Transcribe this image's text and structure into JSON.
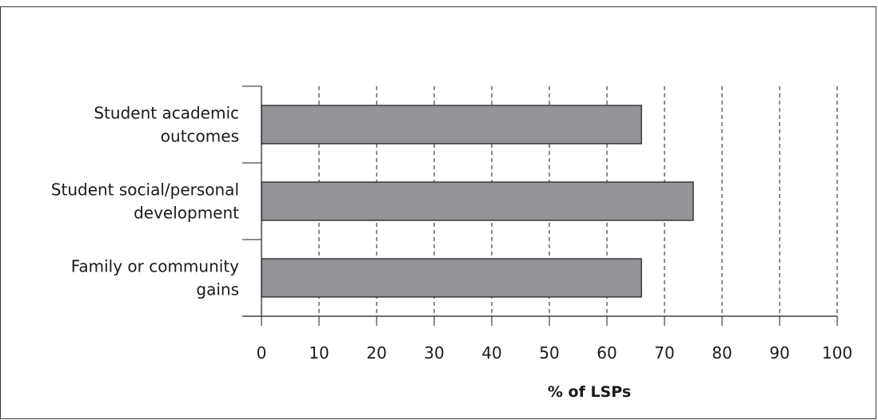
{
  "chart_data": {
    "type": "bar",
    "orientation": "horizontal",
    "categories": [
      [
        "Student academic",
        "outcomes"
      ],
      [
        "Student social/personal",
        "development"
      ],
      [
        "Family or community",
        "gains"
      ]
    ],
    "values": [
      66,
      75,
      66
    ],
    "xlabel": "% of LSPs",
    "xlim": [
      0,
      100
    ],
    "x_ticks": [
      "0",
      "10",
      "20",
      "30",
      "40",
      "50",
      "60",
      "70",
      "80",
      "90",
      "100"
    ],
    "grid": "vertical dashed",
    "colors": {
      "bar_fill": "#939497",
      "bar_stroke": "#1a1a1a",
      "axis": "#1a1a1a",
      "grid": "#1a1a1a"
    }
  }
}
